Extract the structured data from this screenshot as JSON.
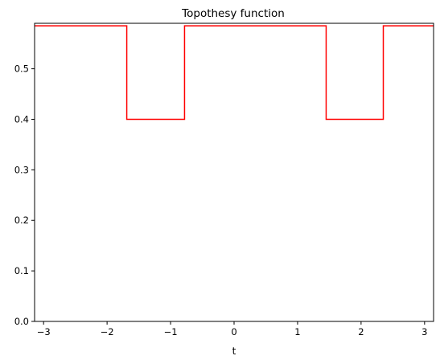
{
  "chart_data": {
    "type": "line",
    "title": "Topothesy function",
    "xlabel": "t",
    "ylabel": "",
    "xlim": [
      -3.14159,
      3.14159
    ],
    "ylim": [
      0.0,
      0.59
    ],
    "grid": false,
    "xticks": [
      -3,
      -2,
      -1,
      0,
      1,
      2,
      3
    ],
    "xtick_labels": [
      "−3",
      "−2",
      "−1",
      "0",
      "1",
      "2",
      "3"
    ],
    "yticks": [
      0.0,
      0.1,
      0.2,
      0.3,
      0.4,
      0.5
    ],
    "ytick_labels": [
      "0.0",
      "0.1",
      "0.2",
      "0.3",
      "0.4",
      "0.5"
    ],
    "series": [
      {
        "name": "",
        "color": "#ff0000",
        "x": [
          -3.14159,
          -1.69,
          -1.69,
          -0.78,
          -0.78,
          1.45,
          1.45,
          2.35,
          2.35,
          3.14159
        ],
        "y": [
          0.585,
          0.585,
          0.4,
          0.4,
          0.585,
          0.585,
          0.4,
          0.4,
          0.585,
          0.585
        ]
      }
    ]
  }
}
